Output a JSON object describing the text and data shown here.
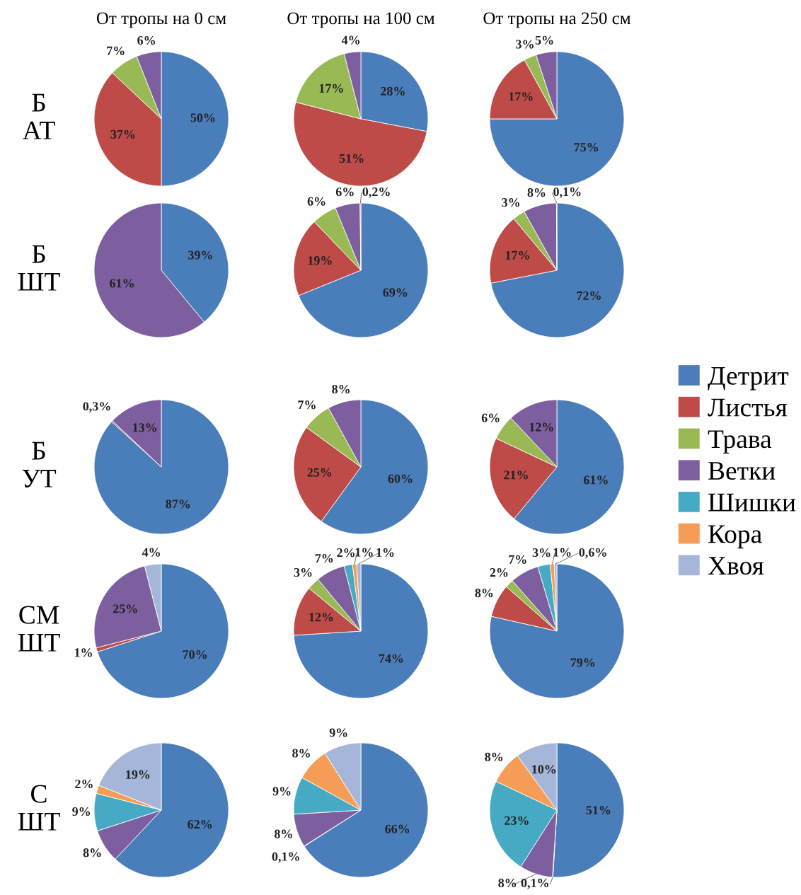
{
  "chart_data": [
    {
      "type": "pie",
      "title": "От тропы на 0 см",
      "ylabel": "Б\nАТ",
      "legend": "right",
      "categories": [
        "Детрит",
        "Листья",
        "Трава",
        "Ветки",
        "Шишки",
        "Кора",
        "Хвоя"
      ],
      "values": [
        50,
        37,
        7,
        6,
        null,
        null,
        null
      ],
      "value_labels": [
        "50%",
        "37%",
        "7%",
        "6%",
        null,
        null,
        null
      ],
      "colors": [
        "#4a7ebb",
        "#be4b48",
        "#98b954",
        "#7d5fa0",
        "#46aac5",
        "#f59d56",
        "#a5b6d9"
      ]
    },
    {
      "type": "pie",
      "title": "От тропы на 100 см",
      "categories": [
        null,
        null,
        null,
        null,
        null,
        null,
        null
      ],
      "values": [
        28,
        51,
        17,
        4,
        null,
        null,
        null
      ],
      "value_labels": [
        "28%",
        "51%",
        "17%",
        "4%",
        null,
        null,
        null
      ],
      "colors": [
        "#4a7ebb",
        "#be4b48",
        "#98b954",
        "#7d5fa0",
        "#46aac5",
        "#f59d56",
        "#a5b6d9"
      ]
    },
    {
      "type": "pie",
      "title": "От тропы на 250 см",
      "categories": [
        null,
        null,
        null,
        null,
        null,
        null,
        null
      ],
      "values": [
        75,
        17,
        3,
        5,
        null,
        null,
        null
      ],
      "value_labels": [
        "75%",
        "17%",
        "3%",
        "5%",
        null,
        null,
        null
      ],
      "colors": [
        "#4a7ebb",
        "#be4b48",
        "#98b954",
        "#7d5fa0",
        "#46aac5",
        "#f59d56",
        "#a5b6d9"
      ]
    },
    {
      "type": "pie",
      "ylabel": "Б\nШТ",
      "categories": [
        null,
        null,
        null,
        null,
        null,
        null,
        null
      ],
      "values": [
        39,
        null,
        null,
        61,
        null,
        null,
        null
      ],
      "value_labels": [
        "39%",
        null,
        null,
        "61%",
        null,
        null,
        null
      ],
      "colors": [
        "#4a7ebb",
        "#be4b48",
        "#98b954",
        "#7d5fa0",
        "#46aac5",
        "#f59d56",
        "#a5b6d9"
      ]
    },
    {
      "type": "pie",
      "categories": [
        null,
        null,
        null,
        null,
        null,
        null,
        null
      ],
      "values": [
        69,
        19,
        6,
        6,
        null,
        0.2,
        null
      ],
      "value_labels": [
        "69%",
        "19%",
        "6%",
        "6%",
        null,
        "0,2%",
        null
      ],
      "colors": [
        "#4a7ebb",
        "#be4b48",
        "#98b954",
        "#7d5fa0",
        "#46aac5",
        "#f59d56",
        "#a5b6d9"
      ]
    },
    {
      "type": "pie",
      "categories": [
        null,
        null,
        null,
        null,
        null,
        null,
        null
      ],
      "values": [
        72,
        17,
        3,
        8,
        null,
        0.1,
        null
      ],
      "value_labels": [
        "72%",
        "17%",
        "3%",
        "8%",
        null,
        "0,1%",
        null
      ],
      "colors": [
        "#4a7ebb",
        "#be4b48",
        "#98b954",
        "#7d5fa0",
        "#46aac5",
        "#f59d56",
        "#a5b6d9"
      ]
    },
    {
      "type": "pie",
      "ylabel": "Б\nУТ",
      "categories": [
        null,
        null,
        null,
        null,
        null,
        null,
        null
      ],
      "values": [
        87,
        0.3,
        null,
        13,
        null,
        null,
        null
      ],
      "value_labels": [
        "87%",
        "0,3%",
        null,
        "13%",
        null,
        null,
        null
      ],
      "colors": [
        "#4a7ebb",
        "#be4b48",
        "#98b954",
        "#7d5fa0",
        "#46aac5",
        "#f59d56",
        "#a5b6d9"
      ]
    },
    {
      "type": "pie",
      "categories": [
        null,
        null,
        null,
        null,
        null,
        null,
        null
      ],
      "values": [
        60,
        25,
        7,
        8,
        null,
        null,
        null
      ],
      "value_labels": [
        "60%",
        "25%",
        "7%",
        "8%",
        null,
        null,
        null
      ],
      "colors": [
        "#4a7ebb",
        "#be4b48",
        "#98b954",
        "#7d5fa0",
        "#46aac5",
        "#f59d56",
        "#a5b6d9"
      ]
    },
    {
      "type": "pie",
      "categories": [
        null,
        null,
        null,
        null,
        null,
        null,
        null
      ],
      "values": [
        61,
        21,
        6,
        12,
        null,
        null,
        null
      ],
      "value_labels": [
        "61%",
        "21%",
        "6%",
        "12%",
        null,
        null,
        null
      ],
      "colors": [
        "#4a7ebb",
        "#be4b48",
        "#98b954",
        "#7d5fa0",
        "#46aac5",
        "#f59d56",
        "#a5b6d9"
      ]
    },
    {
      "type": "pie",
      "ylabel": "СМ\nШТ",
      "categories": [
        null,
        null,
        null,
        null,
        null,
        null,
        null
      ],
      "values": [
        70,
        1,
        null,
        25,
        null,
        null,
        4
      ],
      "value_labels": [
        "70%",
        "1%",
        null,
        "25%",
        null,
        null,
        "4%"
      ],
      "colors": [
        "#4a7ebb",
        "#be4b48",
        "#98b954",
        "#7d5fa0",
        "#46aac5",
        "#f59d56",
        "#a5b6d9"
      ]
    },
    {
      "type": "pie",
      "categories": [
        null,
        null,
        null,
        null,
        null,
        null,
        null
      ],
      "values": [
        74,
        12,
        3,
        7,
        2,
        1,
        1
      ],
      "value_labels": [
        "74%",
        "12%",
        "3%",
        "7%",
        "2%",
        "1%",
        "1%"
      ],
      "colors": [
        "#4a7ebb",
        "#be4b48",
        "#98b954",
        "#7d5fa0",
        "#46aac5",
        "#f59d56",
        "#a5b6d9"
      ]
    },
    {
      "type": "pie",
      "categories": [
        null,
        null,
        null,
        null,
        null,
        null,
        null
      ],
      "values": [
        79,
        8,
        2,
        7,
        3,
        1,
        0.6
      ],
      "value_labels": [
        "79%",
        "8%",
        "2%",
        "7%",
        "3%",
        "1%",
        "0,6%"
      ],
      "colors": [
        "#4a7ebb",
        "#be4b48",
        "#98b954",
        "#7d5fa0",
        "#46aac5",
        "#f59d56",
        "#a5b6d9"
      ]
    },
    {
      "type": "pie",
      "ylabel": "С\nШТ",
      "categories": [
        null,
        null,
        null,
        null,
        null,
        null,
        null
      ],
      "values": [
        62,
        null,
        null,
        8,
        9,
        2,
        19
      ],
      "value_labels": [
        "62%",
        null,
        null,
        "8%",
        "9%",
        "2%",
        "19%"
      ],
      "colors": [
        "#4a7ebb",
        "#be4b48",
        "#98b954",
        "#7d5fa0",
        "#46aac5",
        "#f59d56",
        "#a5b6d9"
      ]
    },
    {
      "type": "pie",
      "categories": [
        null,
        null,
        null,
        null,
        null,
        null,
        null
      ],
      "values": [
        66,
        0.1,
        null,
        8,
        9,
        8,
        9
      ],
      "value_labels": [
        "66%",
        "0,1%",
        null,
        "8%",
        "9%",
        "8%",
        "9%"
      ],
      "colors": [
        "#4a7ebb",
        "#be4b48",
        "#98b954",
        "#7d5fa0",
        "#46aac5",
        "#f59d56",
        "#a5b6d9"
      ]
    },
    {
      "type": "pie",
      "categories": [
        null,
        null,
        null,
        null,
        null,
        null,
        null
      ],
      "values": [
        51,
        0.1,
        null,
        8,
        23,
        8,
        10
      ],
      "value_labels": [
        "51%",
        "0,1%",
        null,
        "8%",
        "23%",
        "8%",
        "10%"
      ],
      "colors": [
        "#4a7ebb",
        "#be4b48",
        "#98b954",
        "#7d5fa0",
        "#46aac5",
        "#f59d56",
        "#a5b6d9"
      ]
    }
  ]
}
